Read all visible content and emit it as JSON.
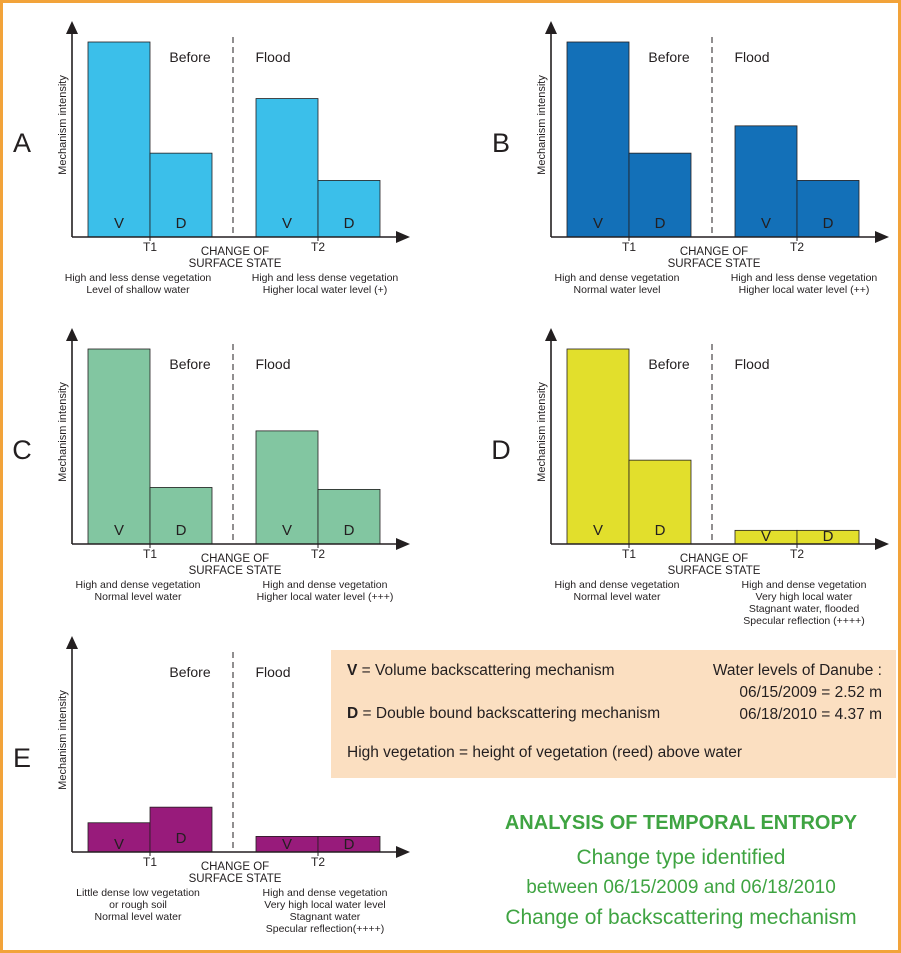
{
  "colors": {
    "border": "#f2a33a",
    "panel_A": "#3bbfea",
    "panel_B": "#1370b8",
    "panel_C": "#82c6a1",
    "panel_D": "#e2df2c",
    "panel_E": "#981b7b",
    "info_bg": "#fbdfc1",
    "analysis_text": "#3fa442"
  },
  "common": {
    "y_axis_label": "Mechanism intensity",
    "before_label": "Before",
    "flood_label": "Flood",
    "t1_label": "T1",
    "t2_label": "T2",
    "change_label_line1": "CHANGE OF",
    "change_label_line2": "SURFACE STATE",
    "v_label": "V",
    "d_label": "D"
  },
  "panels": [
    {
      "letter": "A",
      "color": "#3bbfea",
      "intensity": {
        "before_v": 1.0,
        "before_d": 0.43,
        "flood_v": 0.71,
        "flood_d": 0.29
      },
      "before_caption": [
        "High and less dense vegetation",
        "Level of shallow water"
      ],
      "flood_caption": [
        "High and less dense vegetation",
        "Higher local water level (+)"
      ]
    },
    {
      "letter": "B",
      "color": "#1370b8",
      "intensity": {
        "before_v": 1.0,
        "before_d": 0.43,
        "flood_v": 0.57,
        "flood_d": 0.29
      },
      "before_caption": [
        "High and dense vegetation",
        "Normal water level"
      ],
      "flood_caption": [
        "High and less dense vegetation",
        "Higher local water level (++)"
      ]
    },
    {
      "letter": "C",
      "color": "#82c6a1",
      "intensity": {
        "before_v": 1.0,
        "before_d": 0.29,
        "flood_v": 0.58,
        "flood_d": 0.28
      },
      "before_caption": [
        "High and dense vegetation",
        "Normal level water"
      ],
      "flood_caption": [
        "High and dense vegetation",
        "Higher local water level (+++)"
      ]
    },
    {
      "letter": "D",
      "color": "#e2df2c",
      "intensity": {
        "before_v": 1.0,
        "before_d": 0.43,
        "flood_v": 0.07,
        "flood_d": 0.07
      },
      "before_caption": [
        "High and dense vegetation",
        "Normal level water"
      ],
      "flood_caption": [
        "High and dense vegetation",
        "Very high local water",
        "Stagnant water, flooded",
        "Specular reflection (++++)"
      ]
    },
    {
      "letter": "E",
      "color": "#981b7b",
      "intensity": {
        "before_v": 0.15,
        "before_d": 0.23,
        "flood_v": 0.08,
        "flood_d": 0.08
      },
      "before_caption": [
        "Little dense low vegetation",
        "or rough soil",
        "Normal level water"
      ],
      "flood_caption": [
        "High and dense vegetation",
        "Very high local water level",
        "Stagnant water",
        "Specular reflection(++++)"
      ]
    }
  ],
  "legend": {
    "v_key": "V",
    "v_text": "= Volume backscattering mechanism",
    "d_key": "D",
    "d_text": "= Double bound backscattering mechanism",
    "high_veg": "High vegetation = height of vegetation (reed) above water",
    "water_title": "Water levels of Danube :",
    "water_1": "06/15/2009 = 2.52 m",
    "water_2": "06/18/2010 = 4.37 m"
  },
  "analysis": {
    "title": "ANALYSIS OF TEMPORAL ENTROPY",
    "line1": "Change type identified",
    "line2": "between 06/15/2009 and 06/18/2010",
    "line3": "Change of backscattering mechanism"
  }
}
